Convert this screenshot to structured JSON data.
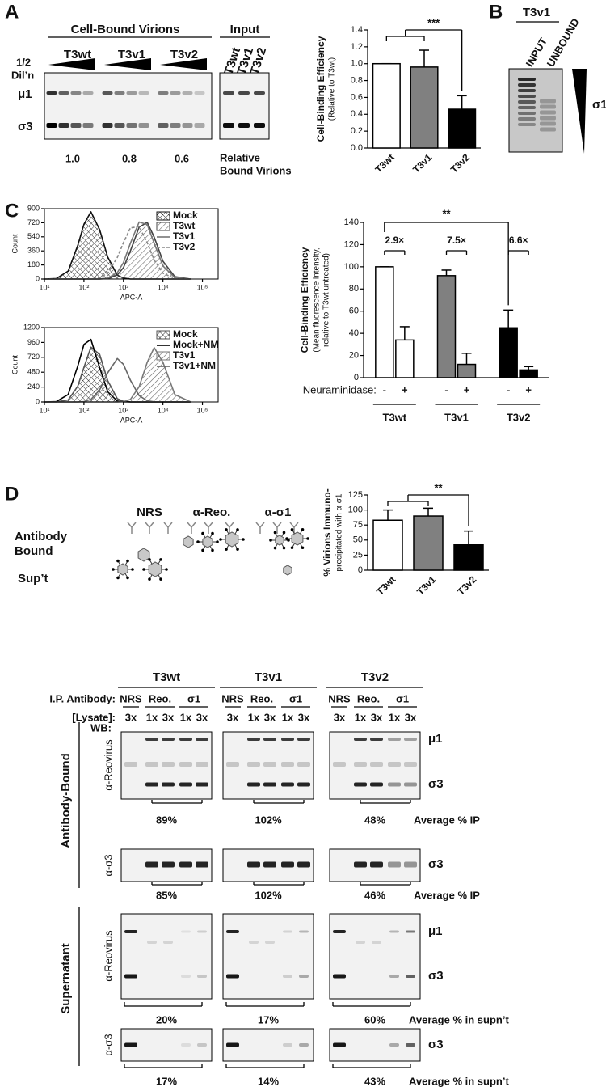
{
  "panel_a": {
    "label": "A",
    "dilution": [
      "1/2",
      "Dil’n"
    ],
    "header": "Cell-Bound Virions",
    "input_header": "Input",
    "strains": [
      "T3wt",
      "T3v1",
      "T3v2"
    ],
    "input_lanes": [
      "T3wt",
      "T3v1",
      "T3v2"
    ],
    "bands": [
      "μ1",
      "σ3"
    ],
    "relative": [
      "1.0",
      "0.8",
      "0.6"
    ],
    "relative_label": [
      "Relative",
      "Bound Virions"
    ]
  },
  "panel_b": {
    "label": "B",
    "strain": "T3v1",
    "lanes": [
      "INPUT",
      "UNBOUND"
    ],
    "band": "σ1"
  },
  "panel_c": {
    "label": "C"
  },
  "panel_d": {
    "label": "D",
    "antibodies": [
      "NRS",
      "α-Reo.",
      "α-σ1"
    ],
    "antibody_bound": [
      "Antibody",
      "Bound"
    ],
    "supernatant_row": "Sup’t",
    "strains": [
      "T3wt",
      "T3v1",
      "T3v2"
    ],
    "ip_label": "I.P. Antibody:",
    "ip_antibodies": [
      "NRS",
      "Reo.",
      "σ1"
    ],
    "lysate_label": "[Lysate]:",
    "lysate": [
      "3x",
      "1x",
      "3x",
      "1x",
      "3x"
    ],
    "wb": "WB:",
    "fractions": [
      "Antibody-Bound",
      "Supernatant"
    ],
    "probes": [
      "α-Reovirus",
      "α-σ3"
    ],
    "bands": [
      "μ1",
      "σ3"
    ],
    "ip_reovirus": [
      "89%",
      "102%",
      "48%"
    ],
    "ip_sigma3": [
      "85%",
      "102%",
      "46%"
    ],
    "average_ip": "Average % IP",
    "supn_reovirus": [
      "20%",
      "17%",
      "60%"
    ],
    "supn_sigma3": [
      "17%",
      "14%",
      "43%"
    ],
    "average_supn": "Average % in supn’t"
  },
  "chart_data": [
    {
      "type": "bar",
      "ylabel": "Cell-Binding  Efficiency",
      "ylabel_sub": "(Relative to T3wt)",
      "categories": [
        "T3wt",
        "T3v1",
        "T3v2"
      ],
      "values": [
        1.0,
        0.96,
        0.46
      ],
      "errors": [
        0,
        0.2,
        0.16
      ],
      "colors": [
        "#ffffff",
        "#808080",
        "#000000"
      ],
      "ylim": [
        0,
        1.4
      ],
      "yticks": [
        {
          "value": 0,
          "label": "0.0"
        },
        {
          "value": 0.2,
          "label": "0.2"
        },
        {
          "value": 0.4,
          "label": "0.4"
        },
        {
          "value": 0.6,
          "label": "0.6"
        },
        {
          "value": 0.8,
          "label": "0.8"
        },
        {
          "value": 1,
          "label": "1.0"
        },
        {
          "value": 1.2,
          "label": "1.2"
        },
        {
          "value": 1.4,
          "label": "1.4"
        }
      ],
      "annotation": "***"
    },
    {
      "type": "line",
      "xlabel": "APC-A",
      "ylabel": "Count",
      "log_x": true,
      "x": [
        10,
        20,
        40,
        70,
        100,
        150,
        250,
        400,
        700,
        1000,
        1500,
        2500,
        4000,
        6000,
        10000,
        20000,
        50000
      ],
      "xlim": [
        10,
        250000
      ],
      "ylim": [
        0,
        900
      ],
      "xticks": [
        {
          "value": 10,
          "label": "10¹"
        },
        {
          "value": 100,
          "label": "10²"
        },
        {
          "value": 1000,
          "label": "10³"
        },
        {
          "value": 10000,
          "label": "10⁴"
        },
        {
          "value": 100000,
          "label": "10⁵"
        }
      ],
      "yticks": [
        0,
        180,
        360,
        540,
        720,
        900
      ],
      "series": [
        {
          "name": "Mock",
          "color": "#111111",
          "fill": "crosshatch",
          "values": [
            0,
            6,
            101,
            431,
            700,
            860,
            632,
            281,
            49,
            12,
            0,
            0,
            0,
            0,
            0,
            0,
            0
          ]
        },
        {
          "name": "T3wt",
          "color": "#444444",
          "fill": "hatch",
          "values": [
            0,
            0,
            0,
            0,
            0,
            0,
            1,
            5,
            52,
            146,
            360,
            664,
            725,
            537,
            228,
            30,
            0
          ]
        },
        {
          "name": "T3v1",
          "color": "#777777",
          "fill": "none",
          "values": [
            0,
            0,
            0,
            0,
            0,
            0,
            1,
            10,
            83,
            210,
            458,
            729,
            697,
            458,
            168,
            18,
            0
          ]
        },
        {
          "name": "T3v2",
          "color": "#888888",
          "fill": "none",
          "dash": true,
          "values": [
            0,
            0,
            0,
            0,
            0,
            2,
            17,
            74,
            276,
            464,
            655,
            669,
            464,
            243,
            74,
            7,
            0
          ]
        }
      ]
    },
    {
      "type": "line",
      "xlabel": "APC-A",
      "ylabel": "Count",
      "log_x": true,
      "x": [
        10,
        20,
        40,
        70,
        100,
        150,
        250,
        400,
        700,
        1000,
        1500,
        2500,
        4000,
        6000,
        10000,
        20000,
        50000
      ],
      "xlim": [
        10,
        250000
      ],
      "ylim": [
        0,
        1200
      ],
      "xticks": [
        {
          "value": 10,
          "label": "10¹"
        },
        {
          "value": 100,
          "label": "10²"
        },
        {
          "value": 1000,
          "label": "10³"
        },
        {
          "value": 10000,
          "label": "10⁴"
        },
        {
          "value": 100000,
          "label": "10⁵"
        }
      ],
      "yticks": [
        0,
        240,
        480,
        720,
        960,
        1200
      ],
      "series": [
        {
          "name": "Mock",
          "color": "#555555",
          "fill": "crosshatch",
          "values": [
            0,
            1,
            31,
            256,
            558,
            883,
            768,
            345,
            52,
            10,
            1,
            0,
            0,
            0,
            0,
            0,
            0
          ]
        },
        {
          "name": "Mock+NM",
          "color": "#000000",
          "fill": "none",
          "values": [
            0,
            5,
            120,
            580,
            927,
            1010,
            554,
            165,
            15,
            2,
            0,
            0,
            0,
            0,
            0,
            0,
            0
          ]
        },
        {
          "name": "T3v1",
          "color": "#777777",
          "fill": "hatch",
          "values": [
            0,
            0,
            0,
            0,
            0,
            0,
            0,
            0,
            1,
            5,
            40,
            245,
            639,
            877,
            639,
            119,
            1
          ]
        },
        {
          "name": "T3v1+NM",
          "color": "#666666",
          "fill": "none",
          "values": [
            0,
            0,
            0,
            1,
            7,
            40,
            193,
            469,
            700,
            607,
            350,
            102,
            20,
            3,
            0,
            0,
            0
          ]
        }
      ]
    },
    {
      "type": "grouped_bar",
      "ylabel": "Cell-Binding  Efficiency",
      "ylabel_sub": "(Mean fluorescence intensity,",
      "ylabel_sub2": "relative to T3wt untreated)",
      "xlabel": "Neuraminidase:",
      "categories": [
        "T3wt",
        "T3v1",
        "T3v2"
      ],
      "colors": [
        "#ffffff",
        "#808080",
        "#000000"
      ],
      "series": [
        {
          "name": "-",
          "values": [
            100,
            92,
            45
          ],
          "errors": [
            0,
            5,
            16
          ]
        },
        {
          "name": "+",
          "values": [
            34,
            12,
            7
          ],
          "errors": [
            12,
            10,
            3
          ]
        }
      ],
      "ylim": [
        0,
        140
      ],
      "yticks": [
        0,
        20,
        40,
        60,
        80,
        100,
        120,
        140
      ],
      "fold_labels": [
        "2.9×",
        "7.5×",
        "6.6×"
      ],
      "annotation": "**"
    },
    {
      "type": "bar",
      "ylabel": "% Virions Immuno-",
      "ylabel_sub": "precipitated with α-σ1",
      "categories": [
        "T3wt",
        "T3v1",
        "T3v2"
      ],
      "values": [
        83,
        90,
        42
      ],
      "errors": [
        17,
        13,
        23
      ],
      "colors": [
        "#ffffff",
        "#808080",
        "#000000"
      ],
      "ylim": [
        0,
        125
      ],
      "yticks": [
        0,
        25,
        50,
        75,
        100,
        125
      ],
      "annotation": "**"
    }
  ]
}
